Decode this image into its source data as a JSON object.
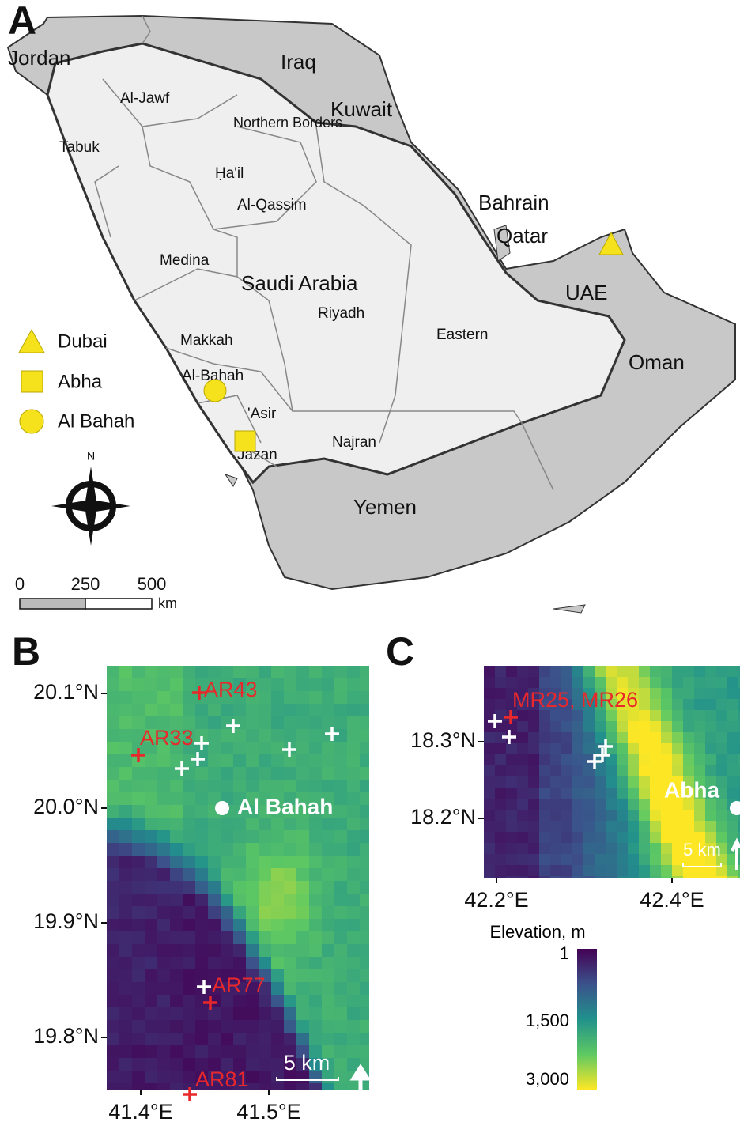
{
  "panels": {
    "A": {
      "label": "A",
      "countries": [
        "Jordan",
        "Iraq",
        "Kuwait",
        "Bahrain",
        "Qatar",
        "UAE",
        "Oman",
        "Yemen",
        "Saudi Arabia"
      ],
      "regions": [
        "Al-Jawf",
        "Northern Borders",
        "Tabuk",
        "Ḥa'il",
        "Al-Qassim",
        "Medina",
        "Riyadh",
        "Eastern",
        "Makkah",
        "Al-Bahah",
        "'Asir",
        "Jazan",
        "Najran"
      ],
      "legend": [
        "Dubai",
        "Abha",
        "Al Bahah"
      ],
      "compass": "N",
      "scale_ticks": [
        "0",
        "250",
        "500"
      ],
      "scale_unit": "km"
    },
    "B": {
      "label": "B",
      "yticks": [
        "20.1°N",
        "20.0°N",
        "19.9°N",
        "19.8°N"
      ],
      "xticks": [
        "41.4°E",
        "41.5°E"
      ],
      "sites": [
        "AR43",
        "AR33",
        "AR77",
        "AR81"
      ],
      "city": "Al Bahah",
      "scale": "5 km"
    },
    "C": {
      "label": "C",
      "yticks": [
        "18.3°N",
        "18.2°N"
      ],
      "xticks": [
        "42.2°E",
        "42.4°E"
      ],
      "sites": [
        "MR25, MR26"
      ],
      "city": "Abha",
      "scale": "5 km"
    },
    "colorbar": {
      "title": "Elevation, m",
      "ticks": [
        "1",
        "1,500",
        "3,000"
      ]
    }
  }
}
